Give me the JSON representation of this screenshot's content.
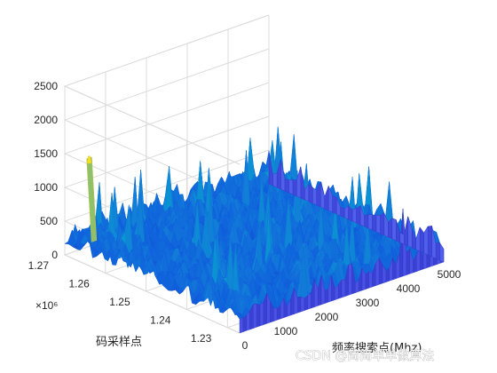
{
  "chart_data": {
    "type": "surface",
    "x_label": "频率搜索点(Mhz)",
    "y_label": "码采样点",
    "y_exponent": "×10⁶",
    "x_ticks": [
      0,
      1000,
      2000,
      3000,
      4000,
      5000
    ],
    "y_ticks": [
      1.23,
      1.24,
      1.25,
      1.26,
      1.27
    ],
    "z_ticks": [
      0,
      500,
      1000,
      1500,
      2000,
      2500
    ],
    "x_range": [
      0,
      5000
    ],
    "y_range": [
      1.227,
      1.27
    ],
    "z_range": [
      0,
      2500
    ],
    "grid": true,
    "colormap": "parula",
    "noise_floor_z": 350,
    "noise_peaks_z": [
      900,
      1000
    ],
    "correlation_peak": {
      "x": 100,
      "y": 1.265,
      "z": 1550
    }
  },
  "watermark": "CSDN @简简单单做算法"
}
